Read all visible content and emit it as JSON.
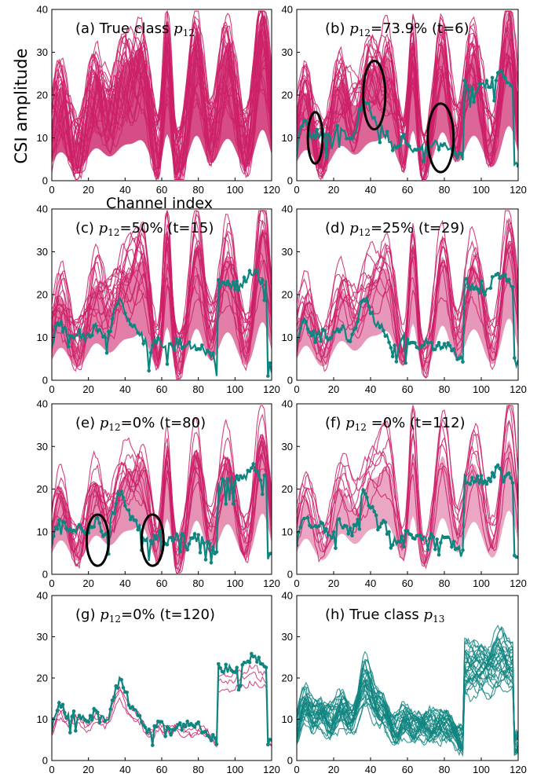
{
  "figure": {
    "ylabel": "CSI amplitude",
    "xlabel": "Channel index"
  },
  "colors": {
    "magenta": "#cc1f67",
    "teal": "#0f8580",
    "axis": "#000000"
  },
  "chart_data": [
    {
      "id": "a",
      "type": "line",
      "title_prefix": "(a) True class ",
      "title_var": "p",
      "title_sub": "12",
      "title_suffix": "",
      "xlim": [
        0,
        120
      ],
      "ylim": [
        0,
        40
      ],
      "xticks": [
        0,
        20,
        40,
        60,
        80,
        100,
        120
      ],
      "yticks": [
        0,
        10,
        20,
        30,
        40
      ],
      "magenta_level": 1.0,
      "teal_level": 0,
      "series": [
        {
          "name": "p12 samples",
          "color": "#cc1f67"
        }
      ]
    },
    {
      "id": "b",
      "type": "line",
      "title_prefix": "(b) ",
      "title_var": "p",
      "title_sub": "12",
      "title_suffix": "=73.9% (t=6)",
      "xlim": [
        0,
        120
      ],
      "ylim": [
        0,
        40
      ],
      "xticks": [
        0,
        20,
        40,
        60,
        80,
        100,
        120
      ],
      "yticks": [
        0,
        10,
        20,
        30,
        40
      ],
      "magenta_level": 0.739,
      "teal_level": 0.26,
      "series": [
        {
          "name": "p12 samples",
          "color": "#cc1f67"
        },
        {
          "name": "p13 samples",
          "color": "#0f8580"
        }
      ]
    },
    {
      "id": "c",
      "type": "line",
      "title_prefix": "(c) ",
      "title_var": "p",
      "title_sub": "12",
      "title_suffix": "=50% (t=15)",
      "xlim": [
        0,
        120
      ],
      "ylim": [
        0,
        40
      ],
      "xticks": [
        0,
        20,
        40,
        60,
        80,
        100,
        120
      ],
      "yticks": [
        0,
        10,
        20,
        30,
        40
      ],
      "magenta_level": 0.5,
      "teal_level": 0.5,
      "series": [
        {
          "name": "p12 samples",
          "color": "#cc1f67"
        },
        {
          "name": "p13 samples",
          "color": "#0f8580"
        }
      ]
    },
    {
      "id": "d",
      "type": "line",
      "title_prefix": "(d) ",
      "title_var": "p",
      "title_sub": "12",
      "title_suffix": "=25% (t=29)",
      "xlim": [
        0,
        120
      ],
      "ylim": [
        0,
        40
      ],
      "xticks": [
        0,
        20,
        40,
        60,
        80,
        100,
        120
      ],
      "yticks": [
        0,
        10,
        20,
        30,
        40
      ],
      "magenta_level": 0.25,
      "teal_level": 0.75,
      "series": [
        {
          "name": "p12 samples",
          "color": "#cc1f67"
        },
        {
          "name": "p13 samples",
          "color": "#0f8580"
        }
      ]
    },
    {
      "id": "e",
      "type": "line",
      "title_prefix": "(e) ",
      "title_var": "p",
      "title_sub": "12",
      "title_suffix": "=0% (t=80)",
      "xlim": [
        0,
        120
      ],
      "ylim": [
        0,
        40
      ],
      "xticks": [
        0,
        20,
        40,
        60,
        80,
        100,
        120
      ],
      "yticks": [
        0,
        10,
        20,
        30,
        40
      ],
      "magenta_level": 0.3,
      "teal_level": 0.85,
      "series": [
        {
          "name": "p12 samples",
          "color": "#cc1f67"
        },
        {
          "name": "p13 samples",
          "color": "#0f8580"
        }
      ]
    },
    {
      "id": "f",
      "type": "line",
      "title_prefix": "(f)  ",
      "title_var": "p",
      "title_sub": "12",
      "title_suffix": " =0% (t=112)",
      "xlim": [
        0,
        120
      ],
      "ylim": [
        0,
        40
      ],
      "xticks": [
        0,
        20,
        40,
        60,
        80,
        100,
        120
      ],
      "yticks": [
        0,
        10,
        20,
        30,
        40
      ],
      "magenta_level": 0.1,
      "teal_level": 0.95,
      "series": [
        {
          "name": "p12 samples",
          "color": "#cc1f67"
        },
        {
          "name": "p13 samples",
          "color": "#0f8580"
        }
      ]
    },
    {
      "id": "g",
      "type": "line",
      "title_prefix": "(g) ",
      "title_var": "p",
      "title_sub": "12",
      "title_suffix": "=0% (t=120)",
      "xlim": [
        0,
        120
      ],
      "ylim": [
        0,
        40
      ],
      "xticks": [
        0,
        20,
        40,
        60,
        80,
        100,
        120
      ],
      "yticks": [
        0,
        10,
        20,
        30,
        40
      ],
      "magenta_level": 0,
      "teal_level": 1.0,
      "series": [
        {
          "name": "p13 samples",
          "color": "#0f8580"
        }
      ]
    },
    {
      "id": "h",
      "type": "line",
      "title_prefix": "(h) True class ",
      "title_var": "p",
      "title_sub": "13",
      "title_suffix": "",
      "xlim": [
        0,
        120
      ],
      "ylim": [
        0,
        40
      ],
      "xticks": [
        0,
        20,
        40,
        60,
        80,
        100,
        120
      ],
      "yticks": [
        0,
        10,
        20,
        30,
        40
      ],
      "magenta_level": 0,
      "teal_level": 1.0,
      "teal_band": true,
      "series": [
        {
          "name": "p13 samples",
          "color": "#0f8580"
        }
      ]
    }
  ]
}
